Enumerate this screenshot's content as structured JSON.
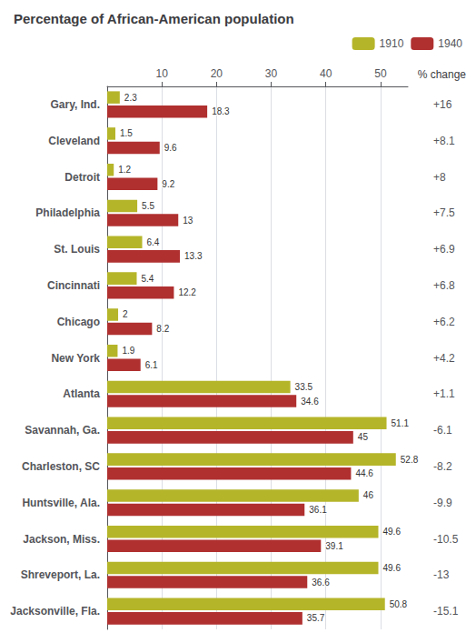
{
  "chart_data": {
    "type": "bar",
    "orientation": "horizontal",
    "title": "Percentage of African-American population",
    "categories": [
      "Gary, Ind.",
      "Cleveland",
      "Detroit",
      "Philadelphia",
      "St. Louis",
      "Cincinnati",
      "Chicago",
      "New York",
      "Atlanta",
      "Savannah, Ga.",
      "Charleston, SC",
      "Huntsville, Ala.",
      "Jackson, Miss.",
      "Shreveport, La.",
      "Jacksonville, Fla."
    ],
    "series": [
      {
        "name": "1910",
        "color": "#b5b52a",
        "values": [
          2.3,
          1.5,
          1.2,
          5.5,
          6.4,
          5.4,
          2.0,
          1.9,
          33.5,
          51.1,
          52.8,
          46.0,
          49.6,
          49.6,
          50.8
        ]
      },
      {
        "name": "1940",
        "color": "#b03030",
        "values": [
          18.3,
          9.6,
          9.2,
          13.0,
          13.3,
          12.2,
          8.2,
          6.1,
          34.6,
          45.0,
          44.6,
          36.1,
          39.1,
          36.6,
          35.7
        ]
      }
    ],
    "xlim": [
      0,
      55
    ],
    "xticks": [
      10,
      20,
      30,
      40,
      50
    ],
    "grid": true,
    "legend": "upper right",
    "data_labels": true,
    "annotations": {
      "title": "% change",
      "labels": [
        "+16",
        "+8.1",
        "+8",
        "+7.5",
        "+6.9",
        "+6.8",
        "+6.2",
        "+4.2",
        "+1.1",
        "-6.1",
        "-8.2",
        "-9.9",
        "-10.5",
        "-13",
        "-15.1"
      ]
    }
  }
}
